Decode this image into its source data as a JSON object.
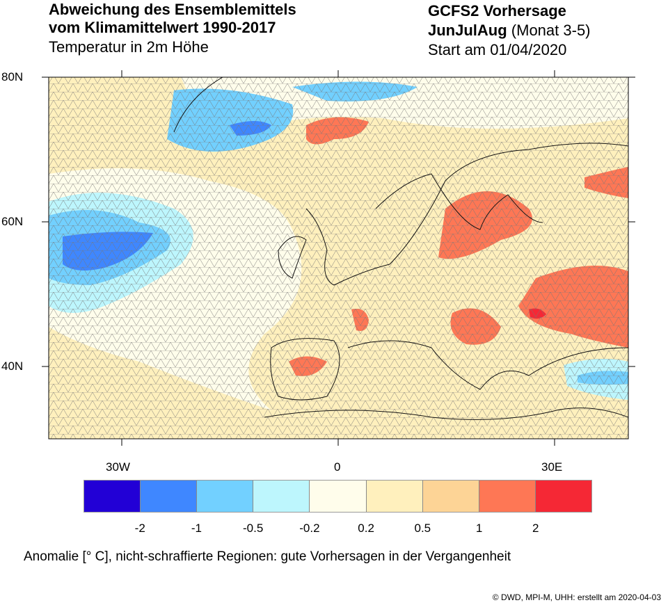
{
  "title_left": {
    "line1": "Abweichung des Ensemblemittels",
    "line2": "vom Klimamittelwert 1990-2017",
    "line3": "Temperatur in 2m Höhe"
  },
  "title_right": {
    "line1": "GCFS2 Vorhersage",
    "season": "JunJulAug",
    "months": "(Monat 3-5)",
    "line3": "Start am 01/04/2020"
  },
  "map": {
    "lat_labels": [
      "80N",
      "60N",
      "40N"
    ],
    "lon_labels": [
      "30W",
      "0",
      "30E"
    ],
    "hatching": "triangle-hatch (non-skillful regions)",
    "coastline_color": "#000000"
  },
  "colorbar": {
    "colors": [
      "#2200d6",
      "#3f87ff",
      "#72d0ff",
      "#bdf6fd",
      "#fffdeb",
      "#fff0bd",
      "#fdd496",
      "#fe7755",
      "#f52835"
    ],
    "labels": [
      "-2",
      "-1",
      "-0.5",
      "-0.2",
      "0.2",
      "0.5",
      "1",
      "2"
    ]
  },
  "footer": "Anomalie [° C], nicht-schraffierte Regionen: gute Vorhersagen in der Vergangenheit",
  "copyright": "©  DWD, MPI-M, UHH: erstellt am 2020-04-03"
}
